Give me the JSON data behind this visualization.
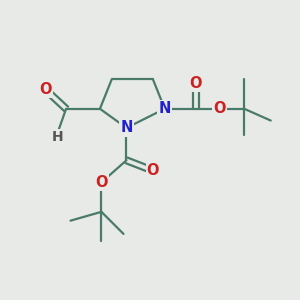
{
  "bg_color": "#e8eae8",
  "bond_color": "#4a7a6a",
  "N_color": "#2222cc",
  "O_color": "#cc2222",
  "figsize": [
    3.0,
    3.0
  ],
  "dpi": 100,
  "xlim": [
    0,
    10
  ],
  "ylim": [
    0,
    10
  ]
}
